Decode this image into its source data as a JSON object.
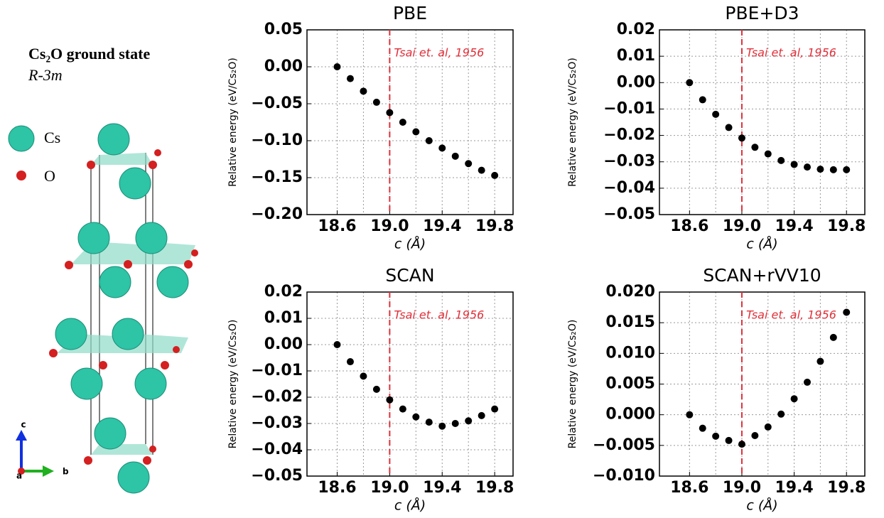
{
  "structure": {
    "title": "Cs₂O ground state",
    "space_group": "R-3m",
    "legend": [
      "Cs",
      "O"
    ],
    "axes": [
      "c",
      "b",
      "a"
    ]
  },
  "chart_data": [
    {
      "type": "scatter",
      "title": "PBE",
      "x_label": "c (Å)",
      "y_label": "Relative energy (eV/Cs₂O)",
      "x": [
        18.6,
        18.7,
        18.8,
        18.9,
        19.0,
        19.1,
        19.2,
        19.3,
        19.4,
        19.5,
        19.6,
        19.7,
        19.8
      ],
      "values": [
        0.0,
        -0.016,
        -0.033,
        -0.048,
        -0.062,
        -0.075,
        -0.088,
        -0.1,
        -0.11,
        -0.121,
        -0.131,
        -0.14,
        -0.147
      ],
      "color": "#000000",
      "xlim": [
        18.37,
        19.94
      ],
      "xticks": [
        18.6,
        {
          "value": 19,
          "label": "19.0"
        },
        19.4,
        19.8
      ],
      "x_minor_ticks": [
        18.8,
        19.2,
        19.6
      ],
      "ylim": [
        -0.2,
        0.05
      ],
      "yticks": [
        0.05,
        {
          "value": 0,
          "label": "0.00"
        },
        {
          "value": -0.05,
          "label": "−0.05"
        },
        {
          "value": -0.1,
          "label": "−0.10"
        },
        {
          "value": -0.15,
          "label": "−0.15"
        },
        {
          "value": -0.2,
          "label": "−0.20"
        }
      ],
      "grid": true,
      "annotation": {
        "text": "Tsai et. al, 1956",
        "x": 19.0,
        "color": "#e0303a"
      }
    },
    {
      "type": "scatter",
      "title": "PBE+D3",
      "x_label": "c (Å)",
      "y_label": "Relative energy (eV/Cs₂O)",
      "x": [
        18.6,
        18.7,
        18.8,
        18.9,
        19.0,
        19.1,
        19.2,
        19.3,
        19.4,
        19.5,
        19.6,
        19.7,
        19.8
      ],
      "values": [
        0.0,
        -0.0065,
        -0.012,
        -0.017,
        -0.021,
        -0.0245,
        -0.027,
        -0.0295,
        -0.031,
        -0.032,
        -0.0328,
        -0.033,
        -0.033
      ],
      "color": "#000000",
      "xlim": [
        18.37,
        19.94
      ],
      "xticks": [
        18.6,
        {
          "value": 19,
          "label": "19.0"
        },
        19.4,
        19.8
      ],
      "x_minor_ticks": [
        18.8,
        19.2,
        19.6
      ],
      "ylim": [
        -0.05,
        0.02
      ],
      "yticks": [
        0.02,
        0.01,
        {
          "value": 0,
          "label": "0.00"
        },
        {
          "value": -0.01,
          "label": "−0.01"
        },
        {
          "value": -0.02,
          "label": "−0.02"
        },
        {
          "value": -0.03,
          "label": "−0.03"
        },
        {
          "value": -0.04,
          "label": "−0.04"
        },
        {
          "value": -0.05,
          "label": "−0.05"
        }
      ],
      "grid": true,
      "annotation": {
        "text": "Tsai et. al, 1956",
        "x": 19.0,
        "color": "#e0303a"
      }
    },
    {
      "type": "scatter",
      "title": "SCAN",
      "x_label": "c (Å)",
      "y_label": "Relative energy (eV/Cs₂O)",
      "x": [
        18.6,
        18.7,
        18.8,
        18.9,
        19.0,
        19.1,
        19.2,
        19.3,
        19.4,
        19.5,
        19.6,
        19.7,
        19.8
      ],
      "values": [
        0.0,
        -0.0065,
        -0.012,
        -0.017,
        -0.021,
        -0.0245,
        -0.0275,
        -0.0295,
        -0.031,
        -0.03,
        -0.029,
        -0.027,
        -0.0245
      ],
      "color": "#000000",
      "xlim": [
        18.37,
        19.94
      ],
      "xticks": [
        18.6,
        {
          "value": 19,
          "label": "19.0"
        },
        19.4,
        19.8
      ],
      "x_minor_ticks": [
        18.8,
        19.2,
        19.6
      ],
      "ylim": [
        -0.05,
        0.02
      ],
      "yticks": [
        0.02,
        0.01,
        {
          "value": 0,
          "label": "0.00"
        },
        {
          "value": -0.01,
          "label": "−0.01"
        },
        {
          "value": -0.02,
          "label": "−0.02"
        },
        {
          "value": -0.03,
          "label": "−0.03"
        },
        {
          "value": -0.04,
          "label": "−0.04"
        },
        {
          "value": -0.05,
          "label": "−0.05"
        }
      ],
      "grid": true,
      "annotation": {
        "text": "Tsai et. al, 1956",
        "x": 19.0,
        "color": "#e0303a"
      }
    },
    {
      "type": "scatter",
      "title": "SCAN+rVV10",
      "x_label": "c (Å)",
      "y_label": "Relative energy (eV/Cs₂O)",
      "x": [
        18.6,
        18.7,
        18.8,
        18.9,
        19.0,
        19.1,
        19.2,
        19.3,
        19.4,
        19.5,
        19.6,
        19.7,
        19.8
      ],
      "values": [
        0.0,
        -0.0022,
        -0.0035,
        -0.0042,
        -0.0048,
        -0.0034,
        -0.002,
        0.0001,
        0.0026,
        0.0053,
        0.0087,
        0.0126,
        0.0167
      ],
      "color": "#000000",
      "xlim": [
        18.37,
        19.94
      ],
      "xticks": [
        18.6,
        {
          "value": 19,
          "label": "19.0"
        },
        19.4,
        19.8
      ],
      "x_minor_ticks": [
        18.8,
        19.2,
        19.6
      ],
      "ylim": [
        -0.01,
        0.02
      ],
      "yticks": [
        {
          "value": 0.02,
          "label": "0.020"
        },
        0.015,
        {
          "value": 0.01,
          "label": "0.010"
        },
        0.005,
        {
          "value": 0,
          "label": "0.000"
        },
        {
          "value": -0.005,
          "label": "−0.005"
        },
        {
          "value": -0.01,
          "label": "−0.010"
        }
      ],
      "grid": true,
      "annotation": {
        "text": "Tsai et. al, 1956",
        "x": 19.0,
        "color": "#e0303a"
      }
    }
  ]
}
